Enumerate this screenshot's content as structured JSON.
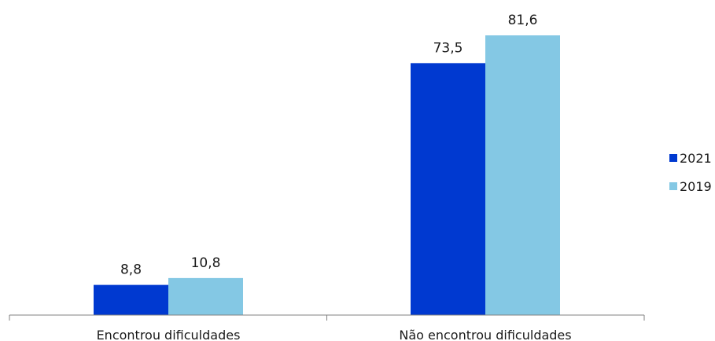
{
  "chart_data": {
    "type": "bar",
    "categories": [
      "Encontrou dificuldades",
      "Não encontrou dificuldades"
    ],
    "series": [
      {
        "name": "2021",
        "values": [
          8.8,
          73.5
        ],
        "labels": [
          "8,8",
          "73,5"
        ],
        "color": "#0039d0"
      },
      {
        "name": "2019",
        "values": [
          10.8,
          81.6
        ],
        "labels": [
          "10,8",
          "81,6"
        ],
        "color": "#84c8e4"
      }
    ],
    "title": "",
    "xlabel": "",
    "ylabel": "",
    "ylim": [
      0,
      81.6
    ],
    "grid": false,
    "legend_position": "right"
  }
}
